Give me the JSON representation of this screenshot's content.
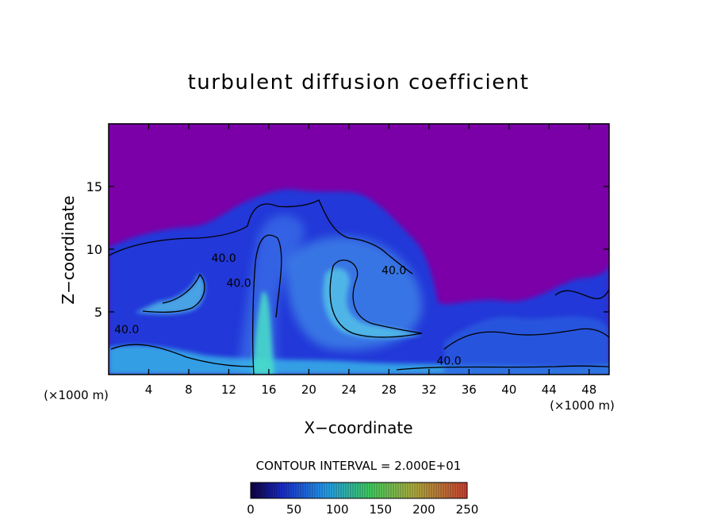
{
  "chart_data": {
    "type": "heatmap",
    "title": "turbulent diffusion coefficient",
    "xlabel": "X−coordinate",
    "ylabel": "Z−coordinate",
    "x_unit": "(×1000 m)",
    "z_unit": "(×1000 m)",
    "xlim": [
      0,
      50
    ],
    "ylim": [
      0,
      20
    ],
    "x_ticks": [
      "4",
      "8",
      "12",
      "16",
      "20",
      "24",
      "28",
      "32",
      "36",
      "40",
      "44",
      "48"
    ],
    "y_ticks": [
      "5",
      "10",
      "15"
    ],
    "contour_interval_label": "CONTOUR INTERVAL = 2.000E+01",
    "contour_labels": [
      {
        "text": "40.0",
        "x": 11.5,
        "z": 9.0
      },
      {
        "text": "40.0",
        "x": 13.0,
        "z": 7.0
      },
      {
        "text": "40.0",
        "x": 28.5,
        "z": 8.0
      },
      {
        "text": "40.0",
        "x": 1.8,
        "z": 3.3
      },
      {
        "text": "40.0",
        "x": 34.0,
        "z": 0.8
      }
    ],
    "colorbar": {
      "ticks": [
        "0",
        "50",
        "100",
        "150",
        "200",
        "250"
      ],
      "range": [
        0,
        250
      ],
      "colors": [
        "#140050",
        "#1a2fd0",
        "#25a0f0",
        "#40d060",
        "#b0c040",
        "#d04030"
      ]
    },
    "background_color": "#7b00a8",
    "grid": false
  }
}
